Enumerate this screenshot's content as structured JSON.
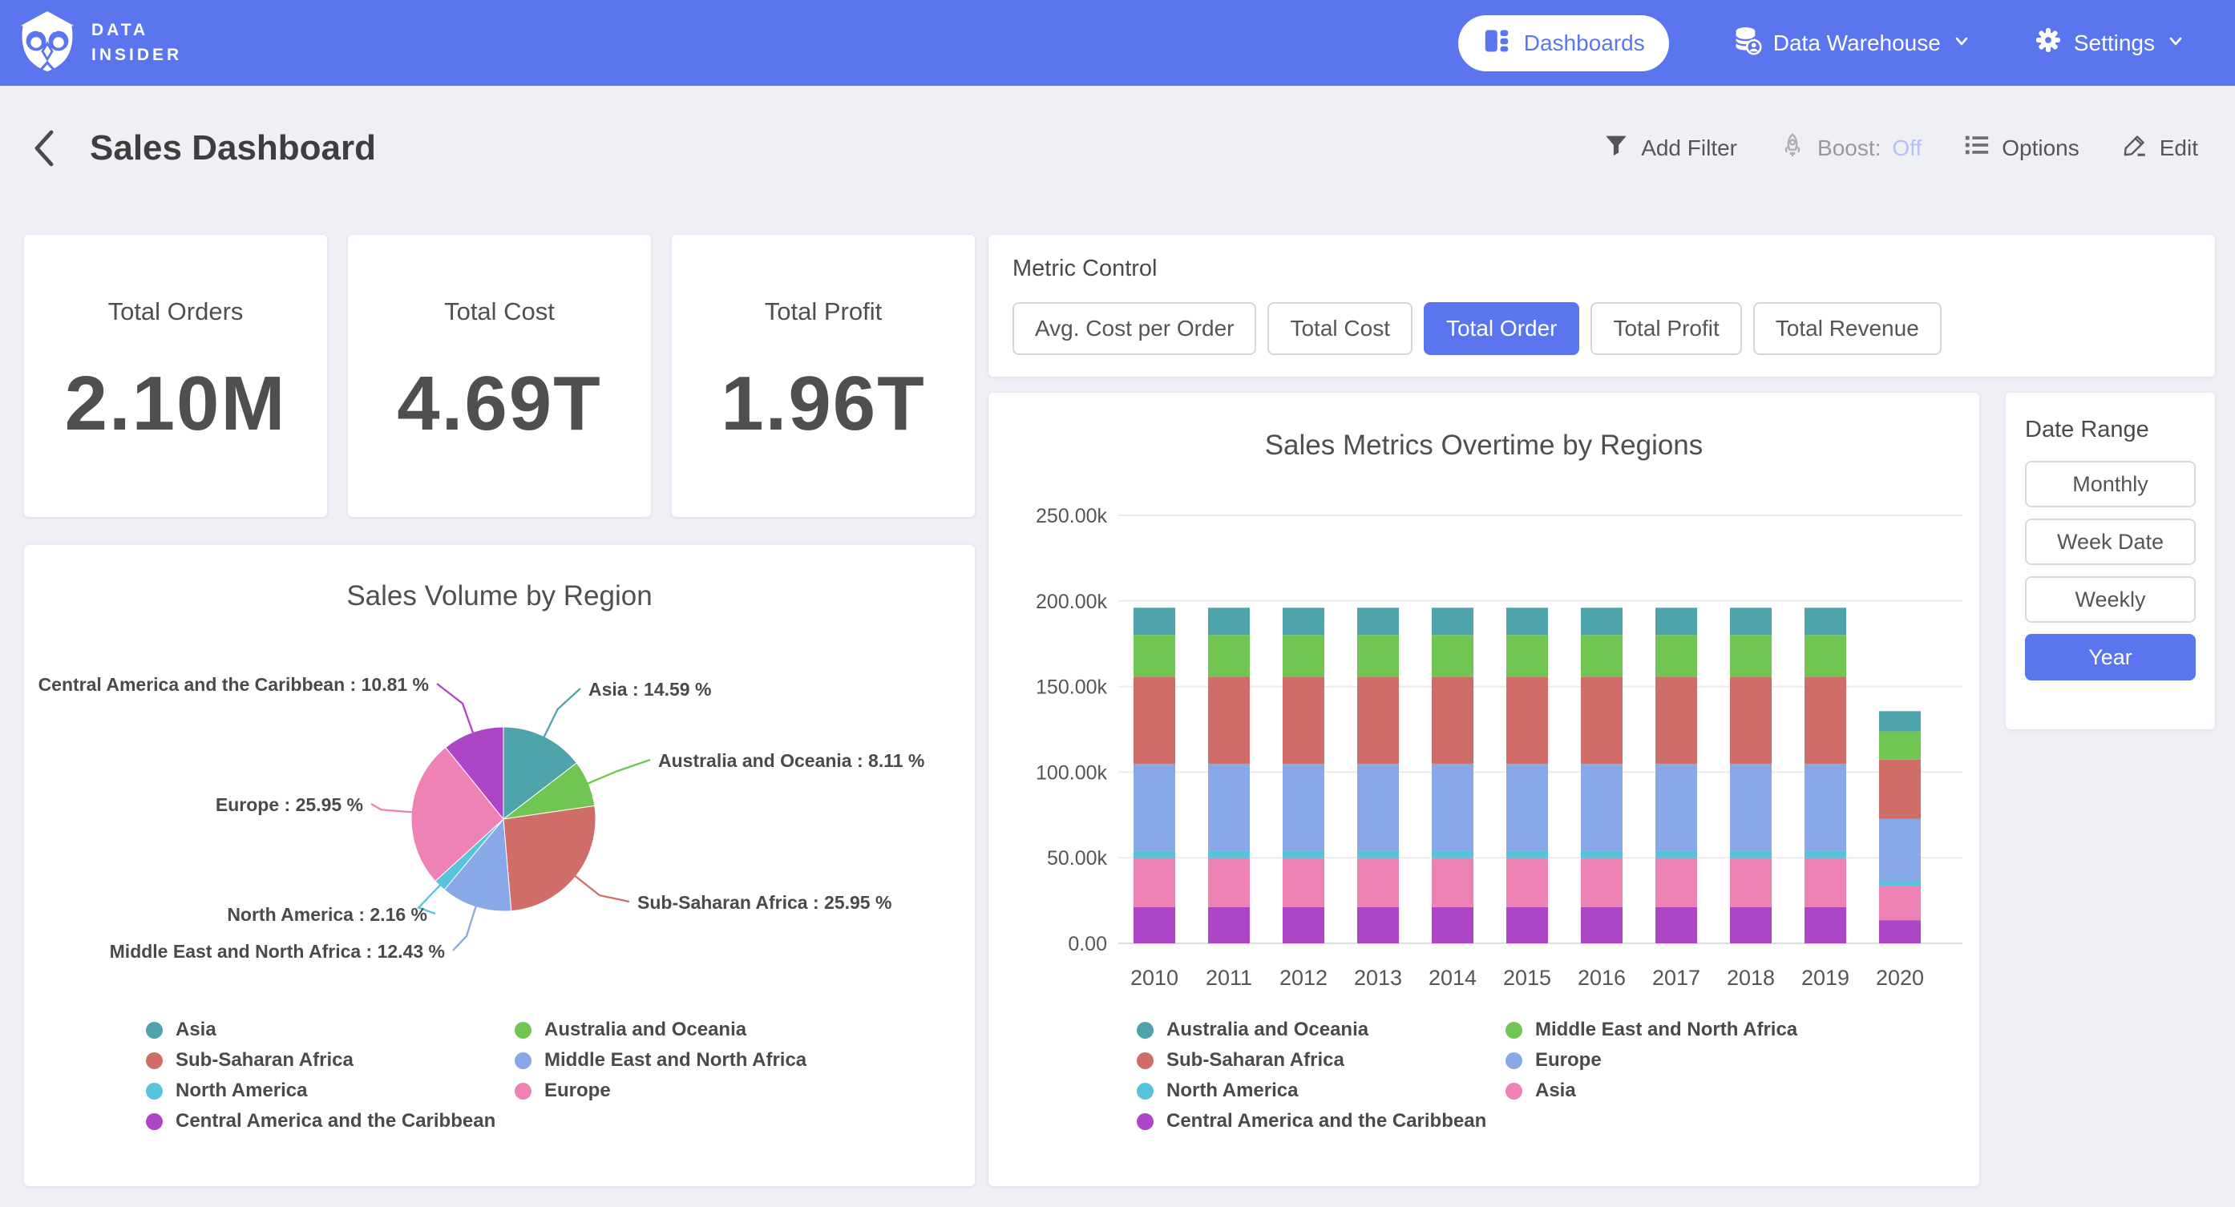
{
  "topbar": {
    "brand": {
      "line1": "DATA",
      "line2": "INSIDER"
    },
    "nav": {
      "dashboards": "Dashboards",
      "data_warehouse": "Data Warehouse",
      "settings": "Settings"
    }
  },
  "header": {
    "title": "Sales Dashboard",
    "add_filter": "Add Filter",
    "boost_label": "Boost:",
    "boost_state": "Off",
    "options": "Options",
    "edit": "Edit"
  },
  "kpis": [
    {
      "label": "Total Orders",
      "value": "2.10M"
    },
    {
      "label": "Total Cost",
      "value": "4.69T"
    },
    {
      "label": "Total Profit",
      "value": "1.96T"
    }
  ],
  "metric_control": {
    "label": "Metric Control",
    "options": [
      {
        "label": "Avg. Cost per Order",
        "selected": false
      },
      {
        "label": "Total Cost",
        "selected": false
      },
      {
        "label": "Total Order",
        "selected": true
      },
      {
        "label": "Total Profit",
        "selected": false
      },
      {
        "label": "Total Revenue",
        "selected": false
      }
    ]
  },
  "date_range": {
    "label": "Date Range",
    "options": [
      {
        "label": "Monthly",
        "selected": false
      },
      {
        "label": "Week Date",
        "selected": false
      },
      {
        "label": "Weekly",
        "selected": false
      },
      {
        "label": "Year",
        "selected": true
      }
    ]
  },
  "colors": {
    "accent": "#5b75ee",
    "boost_off": "#b4c1f8",
    "page_bg": "#eff0f6",
    "text_dark": "#4a4a4a"
  },
  "chart_data": [
    {
      "type": "pie",
      "title": "Sales Volume by Region",
      "label_format": "{label} : {pct} %",
      "slices": [
        {
          "label": "Asia",
          "pct": 14.59,
          "color": "#4fa3aa"
        },
        {
          "label": "Australia and Oceania",
          "pct": 8.11,
          "color": "#71c653"
        },
        {
          "label": "Sub-Saharan Africa",
          "pct": 25.95,
          "color": "#d16d68"
        },
        {
          "label": "Middle East and North Africa",
          "pct": 12.43,
          "color": "#89a8e8"
        },
        {
          "label": "North America",
          "pct": 2.16,
          "color": "#57c4dc"
        },
        {
          "label": "Europe",
          "pct": 25.95,
          "color": "#ee82b4"
        },
        {
          "label": "Central America and the Caribbean",
          "pct": 10.81,
          "color": "#ad46c6"
        }
      ],
      "legend_columns": [
        [
          "Asia",
          "Sub-Saharan Africa",
          "North America",
          "Central America and the Caribbean"
        ],
        [
          "Australia and Oceania",
          "Middle East and North Africa",
          "Europe"
        ]
      ]
    },
    {
      "type": "bar-stacked",
      "title": "Sales Metrics Overtime by Regions",
      "categories": [
        "2010",
        "2011",
        "2012",
        "2013",
        "2014",
        "2015",
        "2016",
        "2017",
        "2018",
        "2019",
        "2020"
      ],
      "series": [
        {
          "name": "Central America and the Caribbean",
          "color": "#ad46c6",
          "values": [
            21200,
            21200,
            21200,
            21200,
            21200,
            21200,
            21200,
            21200,
            21200,
            21200,
            13500
          ]
        },
        {
          "name": "Asia",
          "color": "#ee82b4",
          "values": [
            28600,
            28600,
            28600,
            28600,
            28600,
            28600,
            28600,
            28600,
            28600,
            28600,
            20000
          ]
        },
        {
          "name": "North America",
          "color": "#57c4dc",
          "values": [
            4230,
            4230,
            4230,
            4230,
            4230,
            4230,
            4230,
            4230,
            4230,
            4230,
            2800
          ]
        },
        {
          "name": "Europe",
          "color": "#89a8e8",
          "values": [
            50870,
            50870,
            50870,
            50870,
            50870,
            50870,
            50870,
            50870,
            50870,
            50870,
            36500
          ]
        },
        {
          "name": "Sub-Saharan Africa",
          "color": "#d16d68",
          "values": [
            50870,
            50870,
            50870,
            50870,
            50870,
            50870,
            50870,
            50870,
            50870,
            50870,
            34500
          ]
        },
        {
          "name": "Middle East and North Africa",
          "color": "#71c653",
          "values": [
            24360,
            24360,
            24360,
            24360,
            24360,
            24360,
            24360,
            24360,
            24360,
            24360,
            16500
          ]
        },
        {
          "name": "Australia and Oceania",
          "color": "#4fa3aa",
          "values": [
            15900,
            15900,
            15900,
            15900,
            15900,
            15900,
            15900,
            15900,
            15900,
            15900,
            11800
          ]
        }
      ],
      "ylim": [
        0,
        250000
      ],
      "ytick_labels": [
        "0.00",
        "50.00k",
        "100.00k",
        "150.00k",
        "200.00k",
        "250.00k"
      ],
      "grid": true,
      "legend_position": "bottom",
      "legend_columns": [
        [
          "Australia and Oceania",
          "Sub-Saharan Africa",
          "North America",
          "Central America and the Caribbean"
        ],
        [
          "Middle East and North Africa",
          "Europe",
          "Asia"
        ]
      ]
    }
  ]
}
